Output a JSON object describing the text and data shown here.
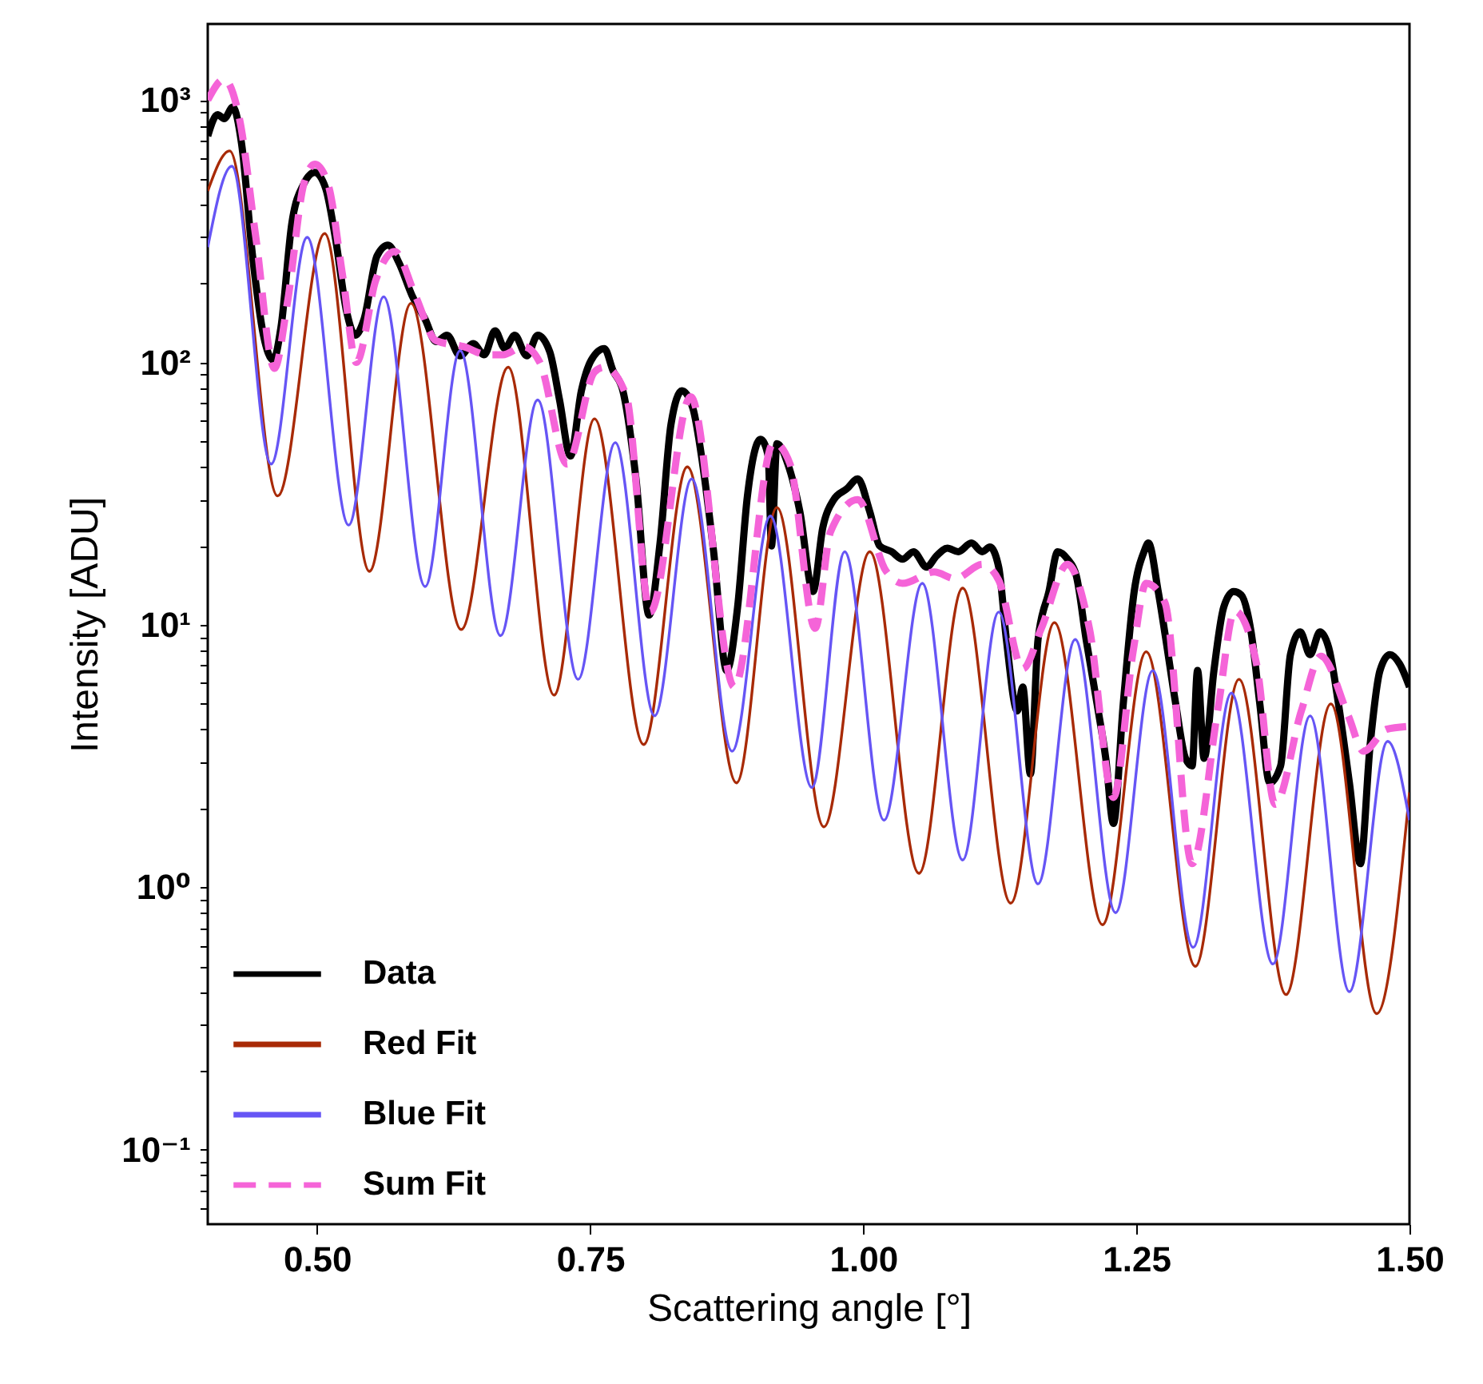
{
  "chart_data": {
    "type": "line",
    "xlabel": "Scattering angle [°]",
    "ylabel": "Intensity [ADU]",
    "log": "y",
    "legend": "bottom left",
    "xlim": [
      0.4,
      1.5
    ],
    "ylim": [
      0.052,
      1950
    ],
    "xticks": [
      {
        "value": 0.5,
        "label": "0.50"
      },
      {
        "value": 0.75,
        "label": "0.75"
      },
      {
        "value": 1,
        "label": "1.00"
      },
      {
        "value": 1.25,
        "label": "1.25"
      },
      {
        "value": 1.5,
        "label": "1.50"
      }
    ],
    "yticks": [
      {
        "value": 0.06,
        "label": null
      },
      {
        "value": 0.07,
        "label": null
      },
      {
        "value": 0.08,
        "label": null
      },
      {
        "value": 0.09,
        "label": null
      },
      {
        "value": 0.1,
        "label": "10⁻¹"
      },
      {
        "value": 0.2,
        "label": null
      },
      {
        "value": 0.3,
        "label": null
      },
      {
        "value": 0.4,
        "label": null
      },
      {
        "value": 0.5,
        "label": null
      },
      {
        "value": 0.6,
        "label": null
      },
      {
        "value": 0.7,
        "label": null
      },
      {
        "value": 0.8,
        "label": null
      },
      {
        "value": 0.9,
        "label": null
      },
      {
        "value": 1,
        "label": "10⁰"
      },
      {
        "value": 2,
        "label": null
      },
      {
        "value": 3,
        "label": null
      },
      {
        "value": 4,
        "label": null
      },
      {
        "value": 5,
        "label": null
      },
      {
        "value": 6,
        "label": null
      },
      {
        "value": 7,
        "label": null
      },
      {
        "value": 8,
        "label": null
      },
      {
        "value": 9,
        "label": null
      },
      {
        "value": 10,
        "label": "10¹"
      },
      {
        "value": 20,
        "label": null
      },
      {
        "value": 30,
        "label": null
      },
      {
        "value": 40,
        "label": null
      },
      {
        "value": 50,
        "label": null
      },
      {
        "value": 60,
        "label": null
      },
      {
        "value": 70,
        "label": null
      },
      {
        "value": 80,
        "label": null
      },
      {
        "value": 90,
        "label": null
      },
      {
        "value": 100,
        "label": "10²"
      },
      {
        "value": 200,
        "label": null
      },
      {
        "value": 300,
        "label": null
      },
      {
        "value": 400,
        "label": null
      },
      {
        "value": 500,
        "label": null
      },
      {
        "value": 600,
        "label": null
      },
      {
        "value": 700,
        "label": null
      },
      {
        "value": 800,
        "label": null
      },
      {
        "value": 900,
        "label": null
      },
      {
        "value": 1000,
        "label": "10³"
      }
    ],
    "series": [
      {
        "name": "Data",
        "color": "#000000",
        "line_style": "solid",
        "x": [
          0.4,
          0.409,
          0.415,
          0.423,
          0.431,
          0.441,
          0.451,
          0.46,
          0.467,
          0.477,
          0.488,
          0.498,
          0.508,
          0.517,
          0.527,
          0.535,
          0.543,
          0.555,
          0.565,
          0.575,
          0.587,
          0.599,
          0.609,
          0.619,
          0.631,
          0.643,
          0.653,
          0.663,
          0.672,
          0.681,
          0.692,
          0.702,
          0.713,
          0.722,
          0.732,
          0.742,
          0.751,
          0.763,
          0.771,
          0.78,
          0.792,
          0.804,
          0.814,
          0.824,
          0.834,
          0.844,
          0.853,
          0.863,
          0.875,
          0.885,
          0.894,
          0.906,
          0.913,
          0.916,
          0.921,
          0.931,
          0.942,
          0.954,
          0.963,
          0.973,
          0.985,
          0.995,
          1.006,
          1.015,
          1.026,
          1.036,
          1.046,
          1.058,
          1.067,
          1.077,
          1.087,
          1.099,
          1.109,
          1.116,
          1.124,
          1.131,
          1.141,
          1.146,
          1.153,
          1.16,
          1.17,
          1.178,
          1.187,
          1.195,
          1.204,
          1.214,
          1.222,
          1.229,
          1.238,
          1.248,
          1.257,
          1.261,
          1.27,
          1.277,
          1.286,
          1.295,
          1.301,
          1.306,
          1.312,
          1.321,
          1.33,
          1.339,
          1.346,
          1.355,
          1.363,
          1.372,
          1.382,
          1.391,
          1.4,
          1.409,
          1.418,
          1.426,
          1.435,
          1.445,
          1.455,
          1.464,
          1.473,
          1.482,
          1.491,
          1.5
        ],
        "values": [
          730,
          880,
          850,
          940,
          680,
          255,
          127,
          102,
          136,
          340,
          480,
          530,
          460,
          295,
          157,
          127,
          146,
          255,
          280,
          240,
          180,
          146,
          120,
          127,
          106,
          118,
          107,
          132,
          113,
          127,
          106,
          127,
          110,
          72,
          44,
          78,
          102,
          113,
          93,
          78,
          36,
          10.9,
          20.5,
          58,
          78,
          67,
          41,
          19.1,
          6.7,
          11.7,
          31,
          51,
          44,
          20,
          49,
          41,
          27,
          13.4,
          23.5,
          30,
          33,
          36,
          27,
          20,
          19,
          17.8,
          19,
          16.6,
          18.3,
          19.6,
          19,
          20.5,
          19,
          19.8,
          16.6,
          8.8,
          4.7,
          5.8,
          2.7,
          8.8,
          13.4,
          19,
          17.8,
          15.4,
          8.8,
          5,
          3.1,
          1.75,
          5,
          13.4,
          19,
          20.5,
          13.4,
          8.8,
          5,
          3.1,
          2.9,
          6.7,
          3.1,
          6.7,
          11.7,
          13.4,
          13,
          9.4,
          5,
          2.5,
          2.9,
          7.7,
          9.4,
          7.7,
          9.4,
          8.2,
          5,
          2.5,
          1.23,
          3.5,
          6.7,
          7.7,
          7.1,
          5.8
        ]
      },
      {
        "name": "Red Fit",
        "color": "#a82a06",
        "line_style": "solid",
        "x": [
          0.4,
          0.42,
          0.464,
          0.507,
          0.548,
          0.586,
          0.632,
          0.675,
          0.717,
          0.754,
          0.799,
          0.839,
          0.884,
          0.921,
          0.964,
          1.006,
          1.051,
          1.091,
          1.135,
          1.175,
          1.219,
          1.259,
          1.304,
          1.344,
          1.387,
          1.428,
          1.47,
          1.5
        ],
        "values": [
          450,
          640,
          31,
          310,
          16,
          168,
          9.6,
          96,
          5.4,
          61,
          3.5,
          40,
          2.5,
          28,
          1.7,
          19,
          1.13,
          13.8,
          0.87,
          10.2,
          0.72,
          7.9,
          0.5,
          6.2,
          0.39,
          5,
          0.33,
          2.3
        ]
      },
      {
        "name": "Blue Fit",
        "color": "#6655f5",
        "line_style": "solid",
        "x": [
          0.4,
          0.422,
          0.458,
          0.491,
          0.529,
          0.561,
          0.599,
          0.631,
          0.668,
          0.702,
          0.739,
          0.773,
          0.809,
          0.843,
          0.88,
          0.915,
          0.953,
          0.983,
          1.019,
          1.054,
          1.091,
          1.124,
          1.16,
          1.194,
          1.231,
          1.265,
          1.302,
          1.337,
          1.375,
          1.409,
          1.445,
          1.48,
          1.5
        ],
        "values": [
          275,
          560,
          41,
          300,
          24,
          178,
          14,
          111,
          9.1,
          72,
          6.2,
          49.5,
          4.5,
          36,
          3.3,
          26,
          2.4,
          19,
          1.8,
          14.4,
          1.27,
          11.2,
          1.03,
          8.8,
          0.8,
          6.7,
          0.59,
          5.5,
          0.51,
          4.5,
          0.4,
          3.6,
          1.8
        ]
      },
      {
        "name": "Sum Fit",
        "color": "#f564d8",
        "line_style": "dashed",
        "x": [
          0.4,
          0.415,
          0.429,
          0.444,
          0.461,
          0.473,
          0.488,
          0.498,
          0.51,
          0.524,
          0.536,
          0.554,
          0.571,
          0.59,
          0.609,
          0.634,
          0.656,
          0.67,
          0.689,
          0.704,
          0.729,
          0.754,
          0.763,
          0.783,
          0.805,
          0.842,
          0.882,
          0.918,
          0.933,
          0.956,
          0.97,
          0.995,
          1.021,
          1.036,
          1.065,
          1.084,
          1.109,
          1.124,
          1.146,
          1.163,
          1.187,
          1.207,
          1.229,
          1.247,
          1.259,
          1.276,
          1.301,
          1.325,
          1.34,
          1.36,
          1.377,
          1.401,
          1.419,
          1.444,
          1.458,
          1.479,
          1.497
        ],
        "values": [
          1000,
          1200,
          850,
          300,
          95,
          170,
          480,
          570,
          480,
          207,
          100,
          207,
          265,
          180,
          121,
          115,
          107,
          107,
          115,
          100,
          41,
          92,
          96,
          75,
          11.2,
          74,
          5.8,
          49.5,
          41,
          9.7,
          22.6,
          30,
          16,
          14.4,
          15.9,
          15,
          17,
          14.8,
          6.8,
          9.7,
          17,
          9.7,
          2.2,
          7.9,
          14.4,
          12.2,
          1.23,
          4.9,
          11.3,
          7.1,
          2.07,
          4.7,
          7.6,
          4.5,
          3.3,
          4,
          4.1
        ]
      }
    ]
  }
}
